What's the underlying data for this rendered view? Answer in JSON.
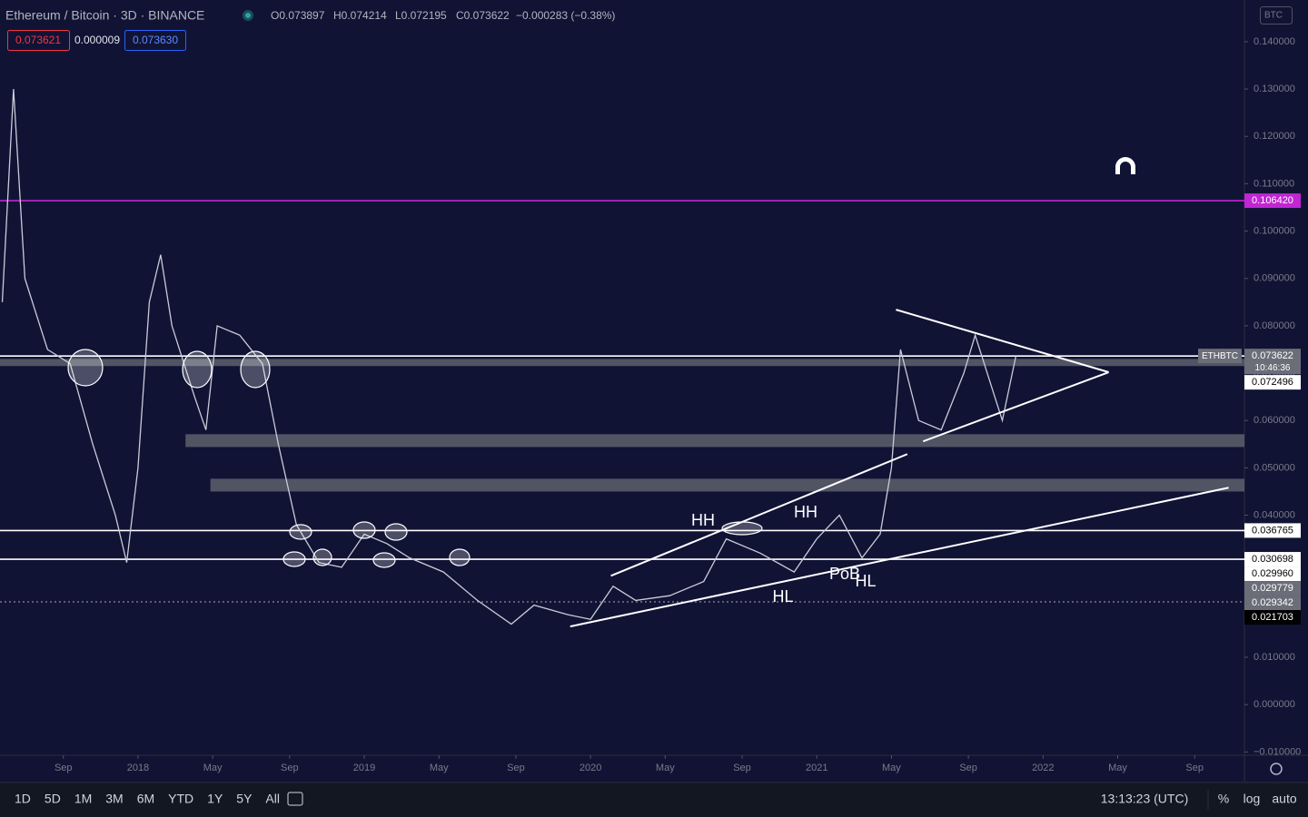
{
  "header": {
    "symbol": "Ethereum / Bitcoin · 3D · BINANCE",
    "open": "O0.073897",
    "high": "H0.074214",
    "low": "L0.072195",
    "close": "C0.073622",
    "change": "−0.000283 (−0.38%)",
    "sell": "0.073621",
    "spread": "0.000009",
    "buy": "0.073630",
    "currency": "BTC"
  },
  "chart_data": {
    "type": "line",
    "series": [
      {
        "name": "ETHBTC",
        "color": "#c9ccd6",
        "x": [
          2017.4,
          2017.45,
          2017.5,
          2017.6,
          2017.7,
          2017.8,
          2017.9,
          2017.95,
          2018.0,
          2018.05,
          2018.1,
          2018.15,
          2018.25,
          2018.3,
          2018.35,
          2018.45,
          2018.55,
          2018.62,
          2018.7,
          2018.8,
          2018.9,
          2019.0,
          2019.1,
          2019.2,
          2019.35,
          2019.5,
          2019.65,
          2019.75,
          2019.9,
          2020.0,
          2020.1,
          2020.2,
          2020.35,
          2020.5,
          2020.6,
          2020.75,
          2020.9,
          2021.0,
          2021.1,
          2021.2,
          2021.28,
          2021.33,
          2021.37,
          2021.45,
          2021.55,
          2021.65,
          2021.7,
          2021.78,
          2021.82,
          2021.88
        ],
        "values": [
          0.085,
          0.13,
          0.09,
          0.075,
          0.072,
          0.055,
          0.04,
          0.03,
          0.05,
          0.085,
          0.095,
          0.08,
          0.065,
          0.058,
          0.08,
          0.078,
          0.072,
          0.055,
          0.038,
          0.03,
          0.029,
          0.036,
          0.034,
          0.031,
          0.028,
          0.022,
          0.017,
          0.021,
          0.019,
          0.018,
          0.025,
          0.022,
          0.023,
          0.026,
          0.035,
          0.032,
          0.028,
          0.035,
          0.04,
          0.031,
          0.036,
          0.05,
          0.075,
          0.06,
          0.058,
          0.07,
          0.078,
          0.066,
          0.06,
          0.073622
        ]
      }
    ],
    "xlim": [
      2017.39,
      2022.89
    ],
    "ylim": [
      -0.0107,
      0.1488
    ],
    "xticks": [
      {
        "value": 2017.67,
        "label": "Sep"
      },
      {
        "value": 2018,
        "label": "2018"
      },
      {
        "value": 2018.33,
        "label": "May"
      },
      {
        "value": 2018.67,
        "label": "Sep"
      },
      {
        "value": 2019,
        "label": "2019"
      },
      {
        "value": 2019.33,
        "label": "May"
      },
      {
        "value": 2019.67,
        "label": "Sep"
      },
      {
        "value": 2020,
        "label": "2020"
      },
      {
        "value": 2020.33,
        "label": "May"
      },
      {
        "value": 2020.67,
        "label": "Sep"
      },
      {
        "value": 2021,
        "label": "2021"
      },
      {
        "value": 2021.33,
        "label": "May"
      },
      {
        "value": 2021.67,
        "label": "Sep"
      },
      {
        "value": 2022,
        "label": "2022"
      },
      {
        "value": 2022.33,
        "label": "May"
      },
      {
        "value": 2022.67,
        "label": "Sep"
      }
    ],
    "yticks": [
      {
        "value": 0.14,
        "label": "0.140000"
      },
      {
        "value": 0.13,
        "label": "0.130000"
      },
      {
        "value": 0.12,
        "label": "0.120000"
      },
      {
        "value": 0.11,
        "label": "0.110000"
      },
      {
        "value": 0.1,
        "label": "0.100000"
      },
      {
        "value": 0.09,
        "label": "0.090000"
      },
      {
        "value": 0.08,
        "label": "0.080000"
      },
      {
        "value": 0.07,
        "label": "0.070000"
      },
      {
        "value": 0.06,
        "label": "0.060000"
      },
      {
        "value": 0.05,
        "label": "0.050000"
      },
      {
        "value": 0.04,
        "label": "0.040000"
      },
      {
        "value": 0.03,
        "label": "0.030000"
      },
      {
        "value": 0.02,
        "label": "0.020000"
      },
      {
        "value": 0.01,
        "label": "0.010000"
      },
      {
        "value": 0,
        "label": "0.000000"
      },
      {
        "value": -0.01,
        "label": "−0.010000"
      }
    ],
    "hlines": [
      {
        "value": 0.10642,
        "color": "#c026d3"
      },
      {
        "value": 0.073622,
        "color": "#ffffff"
      },
      {
        "value": 0.036765,
        "color": "#ffffff"
      },
      {
        "value": 0.030698,
        "color": "#ffffff"
      },
      {
        "value": 0.021703,
        "color": "#aaaaaa",
        "dotted": true
      }
    ],
    "bands": [
      {
        "from": 0.0715,
        "to": 0.073,
        "x_start": 2017.39
      },
      {
        "from": 0.0544,
        "to": 0.0571,
        "x_start": 2018.21
      },
      {
        "from": 0.045,
        "to": 0.0477,
        "x_start": 2018.32
      }
    ],
    "trendlines": [
      {
        "x": [
          2021.35,
          2022.29
        ],
        "y": [
          0.0834,
          0.0702
        ]
      },
      {
        "x": [
          2021.47,
          2022.29
        ],
        "y": [
          0.0556,
          0.0702
        ]
      },
      {
        "x": [
          2020.09,
          2021.4
        ],
        "y": [
          0.0272,
          0.0529
        ]
      },
      {
        "x": [
          2019.91,
          2022.82
        ],
        "y": [
          0.0165,
          0.0458
        ]
      }
    ],
    "price_labels": [
      {
        "value": 0.10642,
        "label": "0.106420",
        "bg": "#c026d3",
        "fg": "#ffffff"
      },
      {
        "value": 0.073622,
        "label": "0.073622",
        "bg": "#6b6e78",
        "fg": "#ffffff",
        "tag": "ETHBTC",
        "countdown": "10:46:36"
      },
      {
        "value": 0.072496,
        "label": "0.072496",
        "bg": "#ffffff",
        "fg": "#000000"
      },
      {
        "value": 0.036765,
        "label": "0.036765",
        "bg": "#ffffff",
        "fg": "#000000"
      },
      {
        "value": 0.030698,
        "label": "0.030698",
        "bg": "#ffffff",
        "fg": "#000000"
      },
      {
        "value": 0.02996,
        "label": "0.029960",
        "bg": "#ffffff",
        "fg": "#000000"
      },
      {
        "value": 0.029779,
        "label": "0.029779",
        "bg": "#6b6e78",
        "fg": "#ffffff"
      },
      {
        "value": 0.029342,
        "label": "0.029342",
        "bg": "#6b6e78",
        "fg": "#ffffff"
      },
      {
        "value": 0.021703,
        "label": "0.021703",
        "bg": "#000000",
        "fg": "#ffffff"
      }
    ],
    "annotations": [
      "HH",
      "HH",
      "HL",
      "PoB",
      "HL"
    ]
  },
  "toolbar": {
    "ranges": [
      "1D",
      "5D",
      "1M",
      "3M",
      "6M",
      "YTD",
      "1Y",
      "5Y",
      "All"
    ],
    "clock": "13:13:23 (UTC)",
    "percent": "%",
    "log": "log",
    "auto": "auto"
  }
}
